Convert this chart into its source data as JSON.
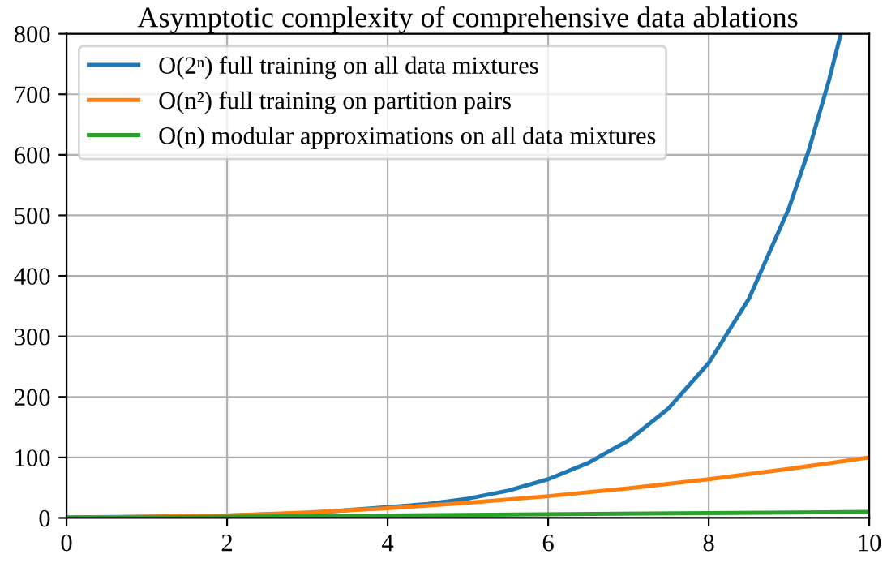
{
  "chart_data": {
    "type": "line",
    "title": "Asymptotic complexity of comprehensive data ablations",
    "series": [
      {
        "name": "O(2ⁿ) full training on all data mixtures",
        "color": "#1f77b4",
        "x": [
          0,
          1,
          2,
          3,
          4.5,
          5,
          5.5,
          6,
          6.5,
          7,
          7.5,
          8,
          8.5,
          9,
          9.25,
          9.5,
          9.64
        ],
        "values": [
          1,
          2,
          4,
          8,
          23,
          32,
          45,
          64,
          91,
          128,
          181,
          256,
          362,
          512,
          609,
          724,
          797
        ]
      },
      {
        "name": "O(n²) full training on partition pairs",
        "color": "#ff7f0e",
        "x": [
          0,
          2,
          3,
          4,
          5,
          6,
          7,
          8,
          9,
          10
        ],
        "values": [
          0,
          4,
          9,
          16,
          25,
          36,
          49,
          64,
          81,
          100
        ]
      },
      {
        "name": "O(n) modular approximations on all data mixtures",
        "color": "#2ca02c",
        "x": [
          0,
          10
        ],
        "values": [
          0,
          10
        ]
      }
    ],
    "xlim": [
      0,
      10
    ],
    "xticks": [
      0,
      2,
      4,
      6,
      8,
      10
    ],
    "ylim": [
      0,
      800
    ],
    "yticks": [
      0,
      100,
      200,
      300,
      400,
      500,
      600,
      700,
      800
    ],
    "grid": true,
    "legend": "top left",
    "marker": "none",
    "line_style": "solid"
  }
}
